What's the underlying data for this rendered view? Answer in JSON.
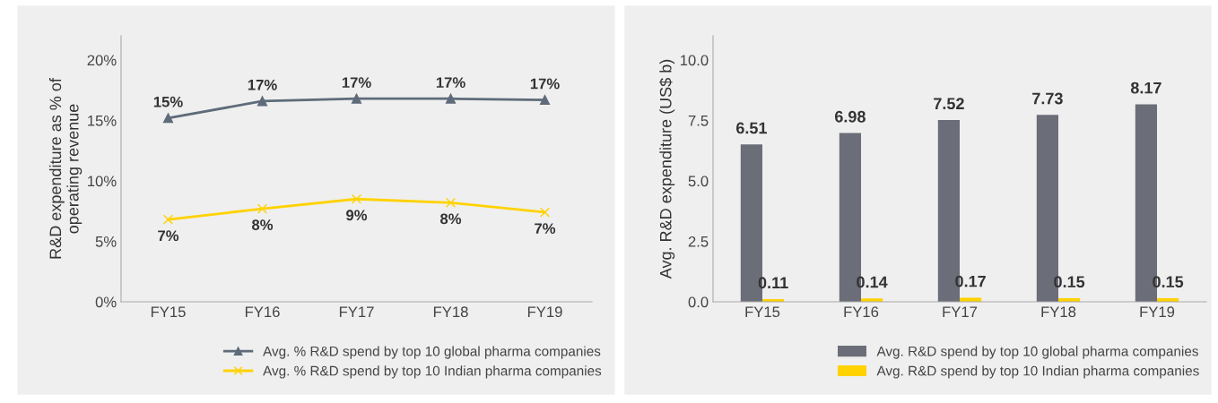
{
  "chart_data": [
    {
      "type": "line",
      "ylabel": "R&D expenditure as % of\noperating revenue",
      "categories": [
        "FY15",
        "FY16",
        "FY17",
        "FY18",
        "FY19"
      ],
      "ylim": [
        0,
        22
      ],
      "yticks": [
        {
          "value": 0,
          "label": "0%"
        },
        {
          "value": 5,
          "label": "5%"
        },
        {
          "value": 10,
          "label": "10%"
        },
        {
          "value": 15,
          "label": "15%"
        },
        {
          "value": 20,
          "label": "20%"
        }
      ],
      "grid": false,
      "legend": "bottom",
      "series": [
        {
          "name": "Avg. % R&D spend by top 10 global pharma companies",
          "color": "#5f6b7a",
          "marker": "triangle",
          "values": [
            15.2,
            16.6,
            16.8,
            16.8,
            16.7
          ],
          "value_labels": [
            "15%",
            "17%",
            "17%",
            "17%",
            "17%"
          ]
        },
        {
          "name": "Avg. % R&D spend by top 10 Indian pharma companies",
          "color": "#ffd200",
          "marker": "cross",
          "values": [
            6.8,
            7.7,
            8.5,
            8.2,
            7.4
          ],
          "value_labels": [
            "7%",
            "8%",
            "9%",
            "8%",
            "7%"
          ]
        }
      ]
    },
    {
      "type": "bar",
      "ylabel": "Avg. R&D expenditure (US$ b)",
      "categories": [
        "FY15",
        "FY16",
        "FY17",
        "FY18",
        "FY19"
      ],
      "ylim": [
        0,
        11
      ],
      "yticks": [
        {
          "value": 0,
          "label": "0.0"
        },
        {
          "value": 2.5,
          "label": "2.5"
        },
        {
          "value": 5,
          "label": "5.0"
        },
        {
          "value": 7.5,
          "label": "7.5"
        },
        {
          "value": 10,
          "label": "10.0"
        }
      ],
      "grid": false,
      "legend": "bottom",
      "data_labels": true,
      "series": [
        {
          "name": "Avg. R&D spend by top 10 global pharma companies",
          "color": "#6b6e78",
          "values": [
            6.51,
            6.98,
            7.52,
            7.73,
            8.17
          ]
        },
        {
          "name": "Avg. R&D spend by top 10 Indian pharma companies",
          "color": "#ffd200",
          "values": [
            0.11,
            0.14,
            0.17,
            0.15,
            0.15
          ]
        }
      ]
    }
  ]
}
